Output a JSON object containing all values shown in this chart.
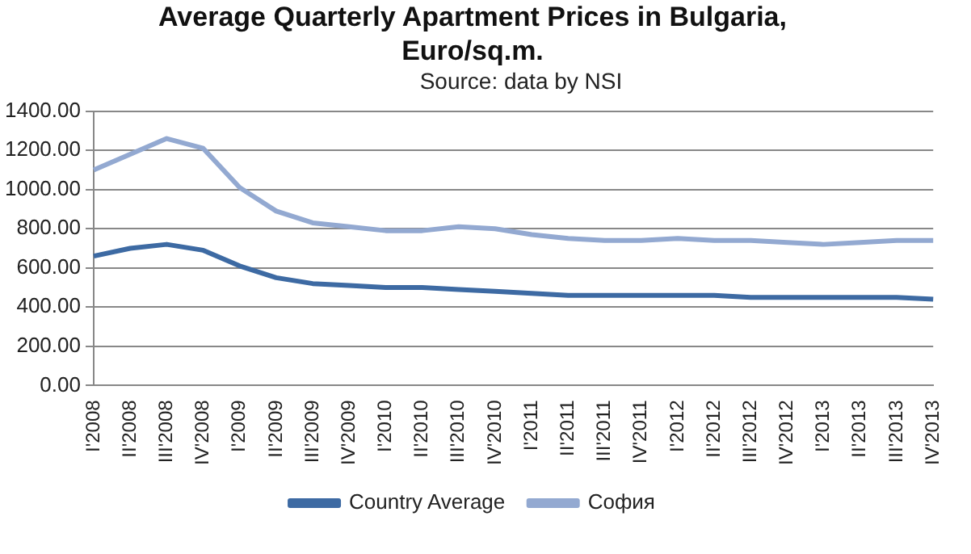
{
  "chart_data": {
    "type": "line",
    "title": "Average Quarterly Apartment Prices in Bulgaria, Euro/sq.m.",
    "subtitle": "Source: data by NSI",
    "categories": [
      "I'2008",
      "II'2008",
      "III'2008",
      "IV'2008",
      "I'2009",
      "II'2009",
      "III'2009",
      "IV'2009",
      "I'2010",
      "II'2010",
      "III'2010",
      "IV'2010",
      "I'2011",
      "II'2011",
      "III'2011",
      "IV'2011",
      "I'2012",
      "II'2012",
      "III'2012",
      "IV'2012",
      "I'2013",
      "II'2013",
      "III'2013",
      "IV'2013"
    ],
    "series": [
      {
        "name": "Country Average",
        "color": "#3d6aa3",
        "values": [
          660,
          700,
          720,
          690,
          610,
          550,
          520,
          510,
          500,
          500,
          490,
          480,
          470,
          460,
          460,
          460,
          460,
          460,
          450,
          450,
          450,
          450,
          450,
          440
        ]
      },
      {
        "name": "София",
        "color": "#93a9d1",
        "values": [
          1100,
          1180,
          1260,
          1210,
          1010,
          890,
          830,
          810,
          790,
          790,
          810,
          800,
          770,
          750,
          740,
          740,
          750,
          740,
          740,
          730,
          720,
          730,
          740,
          740
        ]
      }
    ],
    "ylim": [
      0,
      1400
    ],
    "yticks": [
      {
        "value": 0,
        "label": "0.00"
      },
      {
        "value": 200,
        "label": "200.00"
      },
      {
        "value": 400,
        "label": "400.00"
      },
      {
        "value": 600,
        "label": "600.00"
      },
      {
        "value": 800,
        "label": "800.00"
      },
      {
        "value": 1000,
        "label": "1000.00"
      },
      {
        "value": 1200,
        "label": "1200.00"
      },
      {
        "value": 1400,
        "label": "1400.00"
      }
    ],
    "grid": "y",
    "legend": "bottom",
    "marker": "none",
    "line_style": "solid"
  }
}
